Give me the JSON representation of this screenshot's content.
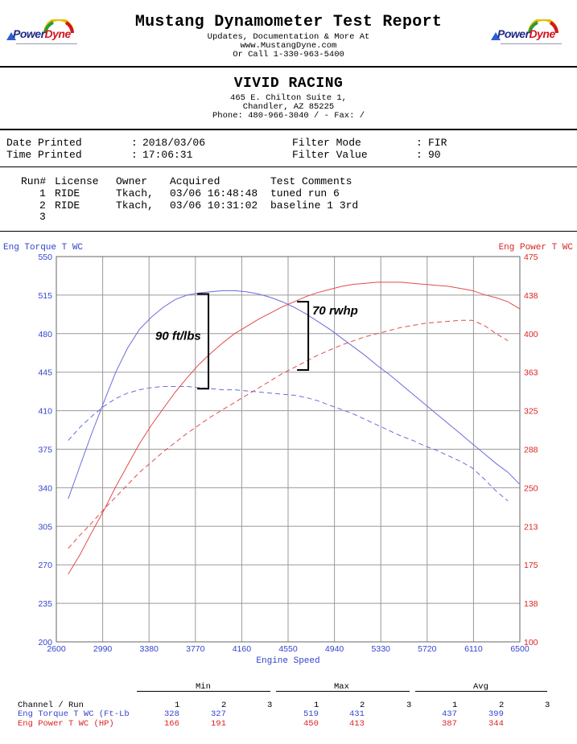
{
  "header": {
    "title": "Mustang Dynamometer Test Report",
    "line1": "Updates, Documentation & More At",
    "line2": "www.MustangDyne.com",
    "line3": "Or Call 1-330-963-5400",
    "logo_part1": "Power",
    "logo_part2": "Dyne"
  },
  "shop": {
    "name": "VIVID RACING",
    "address1": "465 E. Chilton Suite 1,",
    "address2": "Chandler, AZ  85225",
    "phone": "Phone: 480-966-3040 /  - Fax:  /"
  },
  "info": {
    "date_label": "Date Printed",
    "date_value": "2018/03/06",
    "time_label": "Time Printed",
    "time_value": "17:06:31",
    "filter_mode_label": "Filter Mode",
    "filter_mode_value": "FIR",
    "filter_value_label": "Filter Value",
    "filter_value_value": "90",
    "sep": ":"
  },
  "runs": {
    "headers": [
      "Run#",
      "License",
      "Owner",
      "Acquired",
      "Test Comments"
    ],
    "rows": [
      {
        "run": "1",
        "license": "RIDE",
        "owner": "Tkach,",
        "acquired": "03/06 16:48:48",
        "comment": "tuned run 6"
      },
      {
        "run": "2",
        "license": "RIDE",
        "owner": "Tkach,",
        "acquired": "03/06 10:31:02",
        "comment": "baseline 1 3rd"
      },
      {
        "run": "3",
        "license": "",
        "owner": "",
        "acquired": "",
        "comment": ""
      }
    ]
  },
  "chart_data": {
    "type": "line",
    "xlabel": "Engine Speed",
    "ylabel_left": "Eng Torque T WC",
    "ylabel_right": "Eng Power T WC",
    "xlim": [
      2600,
      6500
    ],
    "x_ticks": [
      "2600",
      "2990",
      "3380",
      "3770",
      "4160",
      "4550",
      "4940",
      "5330",
      "5720",
      "6110",
      "6500"
    ],
    "ylim_left": [
      200,
      550
    ],
    "y_ticks_left": [
      "550",
      "515",
      "480",
      "445",
      "410",
      "375",
      "340",
      "305",
      "270",
      "235",
      "200"
    ],
    "ylim_right": [
      100,
      475
    ],
    "y_ticks_right": [
      "475",
      "438",
      "400",
      "363",
      "325",
      "288",
      "250",
      "213",
      "175",
      "138",
      "100"
    ],
    "grid": true,
    "colors": {
      "torque": "#6b6bdc",
      "power": "#e24b4b",
      "left_axis": "#3344cc",
      "right_axis": "#dd2222"
    },
    "series": [
      {
        "axis": "left",
        "style": "solid",
        "color": "#6b6bdc",
        "points": [
          [
            2700,
            330
          ],
          [
            2800,
            360
          ],
          [
            2900,
            390
          ],
          [
            3000,
            418
          ],
          [
            3100,
            445
          ],
          [
            3200,
            467
          ],
          [
            3300,
            484
          ],
          [
            3400,
            495
          ],
          [
            3500,
            504
          ],
          [
            3600,
            511
          ],
          [
            3700,
            515
          ],
          [
            3800,
            517
          ],
          [
            3900,
            518
          ],
          [
            4000,
            519
          ],
          [
            4100,
            519
          ],
          [
            4200,
            518
          ],
          [
            4300,
            516
          ],
          [
            4400,
            513
          ],
          [
            4500,
            509
          ],
          [
            4600,
            504
          ],
          [
            4700,
            498
          ],
          [
            4800,
            491
          ],
          [
            4900,
            484
          ],
          [
            5000,
            476
          ],
          [
            5100,
            468
          ],
          [
            5200,
            460
          ],
          [
            5300,
            451
          ],
          [
            5400,
            443
          ],
          [
            5500,
            434
          ],
          [
            5600,
            425
          ],
          [
            5700,
            416
          ],
          [
            5800,
            407
          ],
          [
            5900,
            398
          ],
          [
            6000,
            389
          ],
          [
            6100,
            380
          ],
          [
            6200,
            371
          ],
          [
            6300,
            362
          ],
          [
            6400,
            354
          ],
          [
            6500,
            343
          ]
        ]
      },
      {
        "axis": "left",
        "style": "dashed",
        "color": "#6b6bdc",
        "points": [
          [
            2700,
            383
          ],
          [
            2800,
            395
          ],
          [
            2900,
            405
          ],
          [
            3000,
            414
          ],
          [
            3100,
            421
          ],
          [
            3200,
            426
          ],
          [
            3300,
            429
          ],
          [
            3400,
            431
          ],
          [
            3500,
            432
          ],
          [
            3600,
            432
          ],
          [
            3700,
            432
          ],
          [
            3800,
            431
          ],
          [
            3900,
            430
          ],
          [
            4000,
            429
          ],
          [
            4100,
            429
          ],
          [
            4200,
            428
          ],
          [
            4300,
            427
          ],
          [
            4400,
            426
          ],
          [
            4500,
            425
          ],
          [
            4600,
            424
          ],
          [
            4700,
            422
          ],
          [
            4800,
            419
          ],
          [
            4900,
            415
          ],
          [
            5000,
            411
          ],
          [
            5100,
            407
          ],
          [
            5200,
            402
          ],
          [
            5300,
            397
          ],
          [
            5400,
            392
          ],
          [
            5500,
            387
          ],
          [
            5600,
            383
          ],
          [
            5700,
            378
          ],
          [
            5800,
            374
          ],
          [
            5900,
            369
          ],
          [
            6000,
            364
          ],
          [
            6100,
            358
          ],
          [
            6200,
            348
          ],
          [
            6300,
            337
          ],
          [
            6400,
            328
          ]
        ]
      },
      {
        "axis": "right",
        "style": "solid",
        "color": "#e24b4b",
        "points": [
          [
            2700,
            166
          ],
          [
            2800,
            185
          ],
          [
            2900,
            207
          ],
          [
            3000,
            228
          ],
          [
            3100,
            251
          ],
          [
            3200,
            272
          ],
          [
            3300,
            293
          ],
          [
            3400,
            311
          ],
          [
            3500,
            327
          ],
          [
            3600,
            343
          ],
          [
            3700,
            357
          ],
          [
            3800,
            370
          ],
          [
            3900,
            381
          ],
          [
            4000,
            391
          ],
          [
            4100,
            400
          ],
          [
            4200,
            407
          ],
          [
            4300,
            414
          ],
          [
            4400,
            420
          ],
          [
            4500,
            426
          ],
          [
            4600,
            431
          ],
          [
            4700,
            436
          ],
          [
            4800,
            440
          ],
          [
            4900,
            443
          ],
          [
            5000,
            446
          ],
          [
            5100,
            448
          ],
          [
            5200,
            449
          ],
          [
            5300,
            450
          ],
          [
            5400,
            450
          ],
          [
            5500,
            450
          ],
          [
            5600,
            449
          ],
          [
            5700,
            448
          ],
          [
            5800,
            447
          ],
          [
            5900,
            446
          ],
          [
            6000,
            444
          ],
          [
            6100,
            442
          ],
          [
            6200,
            438
          ],
          [
            6300,
            435
          ],
          [
            6400,
            431
          ],
          [
            6500,
            424
          ]
        ]
      },
      {
        "axis": "right",
        "style": "dashed",
        "color": "#e24b4b",
        "points": [
          [
            2700,
            191
          ],
          [
            2800,
            204
          ],
          [
            2900,
            216
          ],
          [
            3000,
            229
          ],
          [
            3100,
            241
          ],
          [
            3200,
            253
          ],
          [
            3300,
            265
          ],
          [
            3400,
            275
          ],
          [
            3500,
            285
          ],
          [
            3600,
            294
          ],
          [
            3700,
            303
          ],
          [
            3800,
            311
          ],
          [
            3900,
            319
          ],
          [
            4000,
            326
          ],
          [
            4100,
            333
          ],
          [
            4200,
            340
          ],
          [
            4300,
            347
          ],
          [
            4400,
            354
          ],
          [
            4500,
            361
          ],
          [
            4600,
            367
          ],
          [
            4700,
            373
          ],
          [
            4800,
            379
          ],
          [
            4900,
            384
          ],
          [
            5000,
            389
          ],
          [
            5100,
            393
          ],
          [
            5200,
            397
          ],
          [
            5300,
            400
          ],
          [
            5400,
            403
          ],
          [
            5500,
            406
          ],
          [
            5600,
            408
          ],
          [
            5700,
            410
          ],
          [
            5800,
            411
          ],
          [
            5900,
            412
          ],
          [
            6000,
            413
          ],
          [
            6100,
            413
          ],
          [
            6200,
            408
          ],
          [
            6300,
            400
          ],
          [
            6400,
            393
          ]
        ]
      }
    ],
    "annotations": [
      {
        "text": "90 ft/lbs",
        "bracket_x": 3880,
        "y_top": 516,
        "y_bottom": 430
      },
      {
        "text": "70 rwhp",
        "bracket_x": 4720,
        "y_top": 509,
        "y_bottom": 447
      }
    ]
  },
  "summary": {
    "channel_header": "Channel / Run",
    "groups": [
      "Min",
      "Max",
      "Avg"
    ],
    "run_numbers": [
      "1",
      "2",
      "3"
    ],
    "rows": [
      {
        "label": "Eng Torque T WC (Ft-Lb",
        "color": "#3344cc",
        "min": [
          "328",
          "327",
          ""
        ],
        "max": [
          "519",
          "431",
          ""
        ],
        "avg": [
          "437",
          "399",
          ""
        ]
      },
      {
        "label": "Eng Power T WC (HP)",
        "color": "#dd2222",
        "min": [
          "166",
          "191",
          ""
        ],
        "max": [
          "450",
          "413",
          ""
        ],
        "avg": [
          "387",
          "344",
          ""
        ]
      }
    ]
  }
}
